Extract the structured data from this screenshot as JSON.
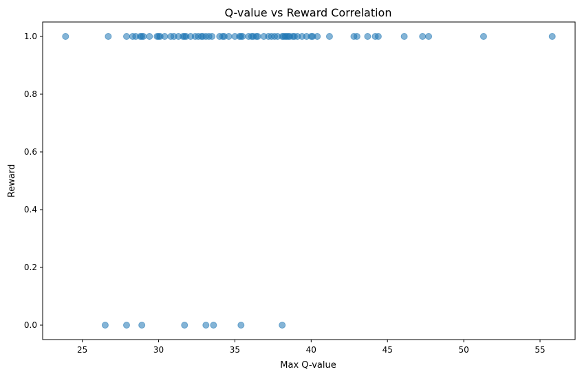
{
  "chart_data": {
    "type": "scatter",
    "title": "Q-value vs Reward Correlation",
    "xlabel": "Max Q-value",
    "ylabel": "Reward",
    "xlim": [
      22.4,
      57.3
    ],
    "ylim": [
      -0.05,
      1.05
    ],
    "xticks": [
      25,
      30,
      35,
      40,
      45,
      50,
      55
    ],
    "yticks": [
      0.0,
      0.2,
      0.4,
      0.6,
      0.8,
      1.0
    ],
    "xtick_labels": [
      "25",
      "30",
      "35",
      "40",
      "45",
      "50",
      "55"
    ],
    "ytick_labels": [
      "0.0",
      "0.2",
      "0.4",
      "0.6",
      "0.8",
      "1.0"
    ],
    "grid": false,
    "marker_color": "#1f77b4",
    "marker_alpha": 0.55,
    "series": [
      {
        "points": [
          {
            "x": 23.9,
            "y": 1
          },
          {
            "x": 26.7,
            "y": 1
          },
          {
            "x": 27.9,
            "y": 1
          },
          {
            "x": 28.3,
            "y": 1
          },
          {
            "x": 28.5,
            "y": 1
          },
          {
            "x": 28.8,
            "y": 1
          },
          {
            "x": 28.9,
            "y": 1
          },
          {
            "x": 29.0,
            "y": 1
          },
          {
            "x": 29.4,
            "y": 1
          },
          {
            "x": 29.9,
            "y": 1
          },
          {
            "x": 30.0,
            "y": 1
          },
          {
            "x": 30.1,
            "y": 1
          },
          {
            "x": 30.4,
            "y": 1
          },
          {
            "x": 30.8,
            "y": 1
          },
          {
            "x": 31.0,
            "y": 1
          },
          {
            "x": 31.3,
            "y": 1
          },
          {
            "x": 31.6,
            "y": 1
          },
          {
            "x": 31.7,
            "y": 1
          },
          {
            "x": 31.8,
            "y": 1
          },
          {
            "x": 32.1,
            "y": 1
          },
          {
            "x": 32.4,
            "y": 1
          },
          {
            "x": 32.6,
            "y": 1
          },
          {
            "x": 32.8,
            "y": 1
          },
          {
            "x": 32.9,
            "y": 1
          },
          {
            "x": 33.1,
            "y": 1
          },
          {
            "x": 33.3,
            "y": 1
          },
          {
            "x": 33.5,
            "y": 1
          },
          {
            "x": 34.0,
            "y": 1
          },
          {
            "x": 34.2,
            "y": 1
          },
          {
            "x": 34.3,
            "y": 1
          },
          {
            "x": 34.6,
            "y": 1
          },
          {
            "x": 35.0,
            "y": 1
          },
          {
            "x": 35.3,
            "y": 1
          },
          {
            "x": 35.4,
            "y": 1
          },
          {
            "x": 35.5,
            "y": 1
          },
          {
            "x": 35.9,
            "y": 1
          },
          {
            "x": 36.1,
            "y": 1
          },
          {
            "x": 36.2,
            "y": 1
          },
          {
            "x": 36.4,
            "y": 1
          },
          {
            "x": 36.5,
            "y": 1
          },
          {
            "x": 36.9,
            "y": 1
          },
          {
            "x": 37.2,
            "y": 1
          },
          {
            "x": 37.4,
            "y": 1
          },
          {
            "x": 37.6,
            "y": 1
          },
          {
            "x": 37.8,
            "y": 1
          },
          {
            "x": 38.1,
            "y": 1
          },
          {
            "x": 38.2,
            "y": 1
          },
          {
            "x": 38.3,
            "y": 1
          },
          {
            "x": 38.4,
            "y": 1
          },
          {
            "x": 38.5,
            "y": 1
          },
          {
            "x": 38.6,
            "y": 1
          },
          {
            "x": 38.8,
            "y": 1
          },
          {
            "x": 38.9,
            "y": 1
          },
          {
            "x": 39.1,
            "y": 1
          },
          {
            "x": 39.4,
            "y": 1
          },
          {
            "x": 39.7,
            "y": 1
          },
          {
            "x": 40.0,
            "y": 1
          },
          {
            "x": 40.1,
            "y": 1
          },
          {
            "x": 40.4,
            "y": 1
          },
          {
            "x": 41.2,
            "y": 1
          },
          {
            "x": 42.8,
            "y": 1
          },
          {
            "x": 43.0,
            "y": 1
          },
          {
            "x": 43.7,
            "y": 1
          },
          {
            "x": 44.2,
            "y": 1
          },
          {
            "x": 44.4,
            "y": 1
          },
          {
            "x": 46.1,
            "y": 1
          },
          {
            "x": 47.3,
            "y": 1
          },
          {
            "x": 47.7,
            "y": 1
          },
          {
            "x": 51.3,
            "y": 1
          },
          {
            "x": 55.8,
            "y": 1
          },
          {
            "x": 26.5,
            "y": 0
          },
          {
            "x": 27.9,
            "y": 0
          },
          {
            "x": 28.9,
            "y": 0
          },
          {
            "x": 31.7,
            "y": 0
          },
          {
            "x": 33.1,
            "y": 0
          },
          {
            "x": 33.6,
            "y": 0
          },
          {
            "x": 35.4,
            "y": 0
          },
          {
            "x": 38.1,
            "y": 0
          }
        ]
      }
    ]
  }
}
